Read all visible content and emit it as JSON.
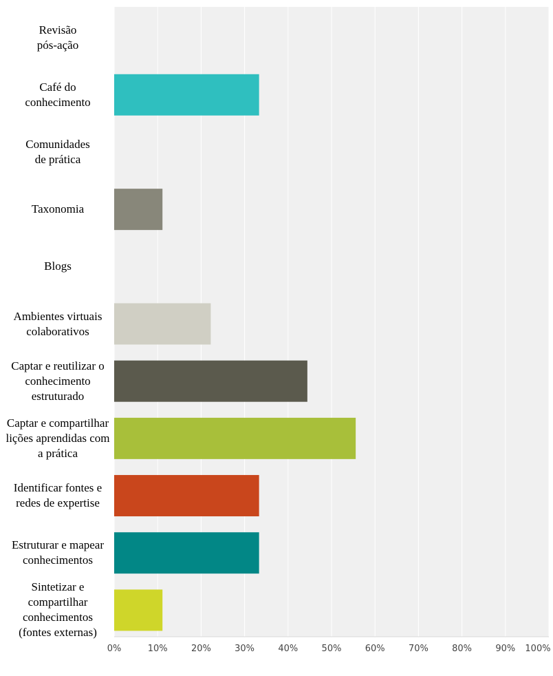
{
  "chart_data": {
    "type": "bar",
    "orientation": "horizontal",
    "categories": [
      "Revisão\npós-ação",
      "Café do\nconhecimento",
      "Comunidades\nde prática",
      "Taxonomia",
      "Blogs",
      "Ambientes virtuais\ncolaborativos",
      "Captar e reutilizar o\nconhecimento\nestruturado",
      "Captar e compartilhar\nlições aprendidas com\na prática",
      "Identificar fontes e\nredes de expertise",
      "Estruturar e mapear\nconhecimentos",
      "Sintetizar e\ncompartilhar\nconhecimentos\n(fontes externas)"
    ],
    "values": [
      0,
      33.33,
      0,
      11.11,
      0,
      22.22,
      44.44,
      55.56,
      33.33,
      33.33,
      11.11
    ],
    "bar_colors": [
      "#2ab6c0",
      "#2fbfbf",
      "#2ab6c0",
      "#88877a",
      "#c8c8c8",
      "#d0cfc4",
      "#5b5a4d",
      "#a8bf3a",
      "#c9461c",
      "#028786",
      "#cfd62a"
    ],
    "x_ticks": [
      "0%",
      "10%",
      "20%",
      "30%",
      "40%",
      "50%",
      "60%",
      "70%",
      "80%",
      "90%",
      "100%"
    ],
    "xlim": [
      0,
      100
    ],
    "grid": true,
    "plot_background": "#f0f0f0",
    "grid_color": "#ffffff",
    "title": "",
    "xlabel": "",
    "ylabel": ""
  }
}
